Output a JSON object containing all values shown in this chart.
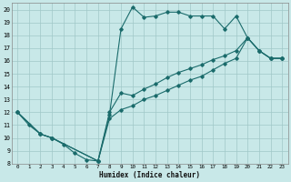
{
  "xlabel": "Humidex (Indice chaleur)",
  "bg_color": "#c8e8e8",
  "line_color": "#1a6b6b",
  "grid_color": "#a0c8c8",
  "xlim": [
    -0.5,
    23.5
  ],
  "ylim": [
    8,
    20.5
  ],
  "xticks": [
    0,
    1,
    2,
    3,
    4,
    5,
    6,
    7,
    8,
    9,
    10,
    11,
    12,
    13,
    14,
    15,
    16,
    17,
    18,
    19,
    20,
    21,
    22,
    23
  ],
  "yticks": [
    8,
    9,
    10,
    11,
    12,
    13,
    14,
    15,
    16,
    17,
    18,
    19,
    20
  ],
  "line1_x": [
    0,
    1,
    2,
    3,
    4,
    5,
    6,
    7,
    8,
    9,
    10,
    11,
    12,
    13,
    14,
    15,
    16,
    17,
    18,
    19,
    20,
    21,
    22,
    23
  ],
  "line1_y": [
    12,
    11,
    10.3,
    10,
    9.5,
    8.8,
    8.3,
    8.2,
    11.8,
    18.5,
    20.2,
    19.4,
    19.5,
    19.8,
    19.8,
    19.5,
    19.5,
    19.5,
    18.5,
    19.5,
    17.8,
    16.8,
    16.2,
    16.2
  ],
  "line2_x": [
    0,
    2,
    3,
    7,
    8,
    9,
    10,
    11,
    12,
    13,
    14,
    15,
    16,
    17,
    18,
    19,
    20,
    21,
    22,
    23
  ],
  "line2_y": [
    12,
    10.3,
    10,
    8.2,
    12.0,
    13.5,
    13.3,
    13.8,
    14.2,
    14.7,
    15.1,
    15.4,
    15.7,
    16.1,
    16.4,
    16.8,
    17.8,
    16.8,
    16.2,
    16.2
  ],
  "line3_x": [
    0,
    2,
    3,
    7,
    8,
    9,
    10,
    11,
    12,
    13,
    14,
    15,
    16,
    17,
    18,
    19,
    20,
    21,
    22,
    23
  ],
  "line3_y": [
    12,
    10.3,
    10,
    8.2,
    11.5,
    12.2,
    12.5,
    13.0,
    13.3,
    13.7,
    14.1,
    14.5,
    14.8,
    15.3,
    15.8,
    16.2,
    17.8,
    16.8,
    16.2,
    16.2
  ]
}
